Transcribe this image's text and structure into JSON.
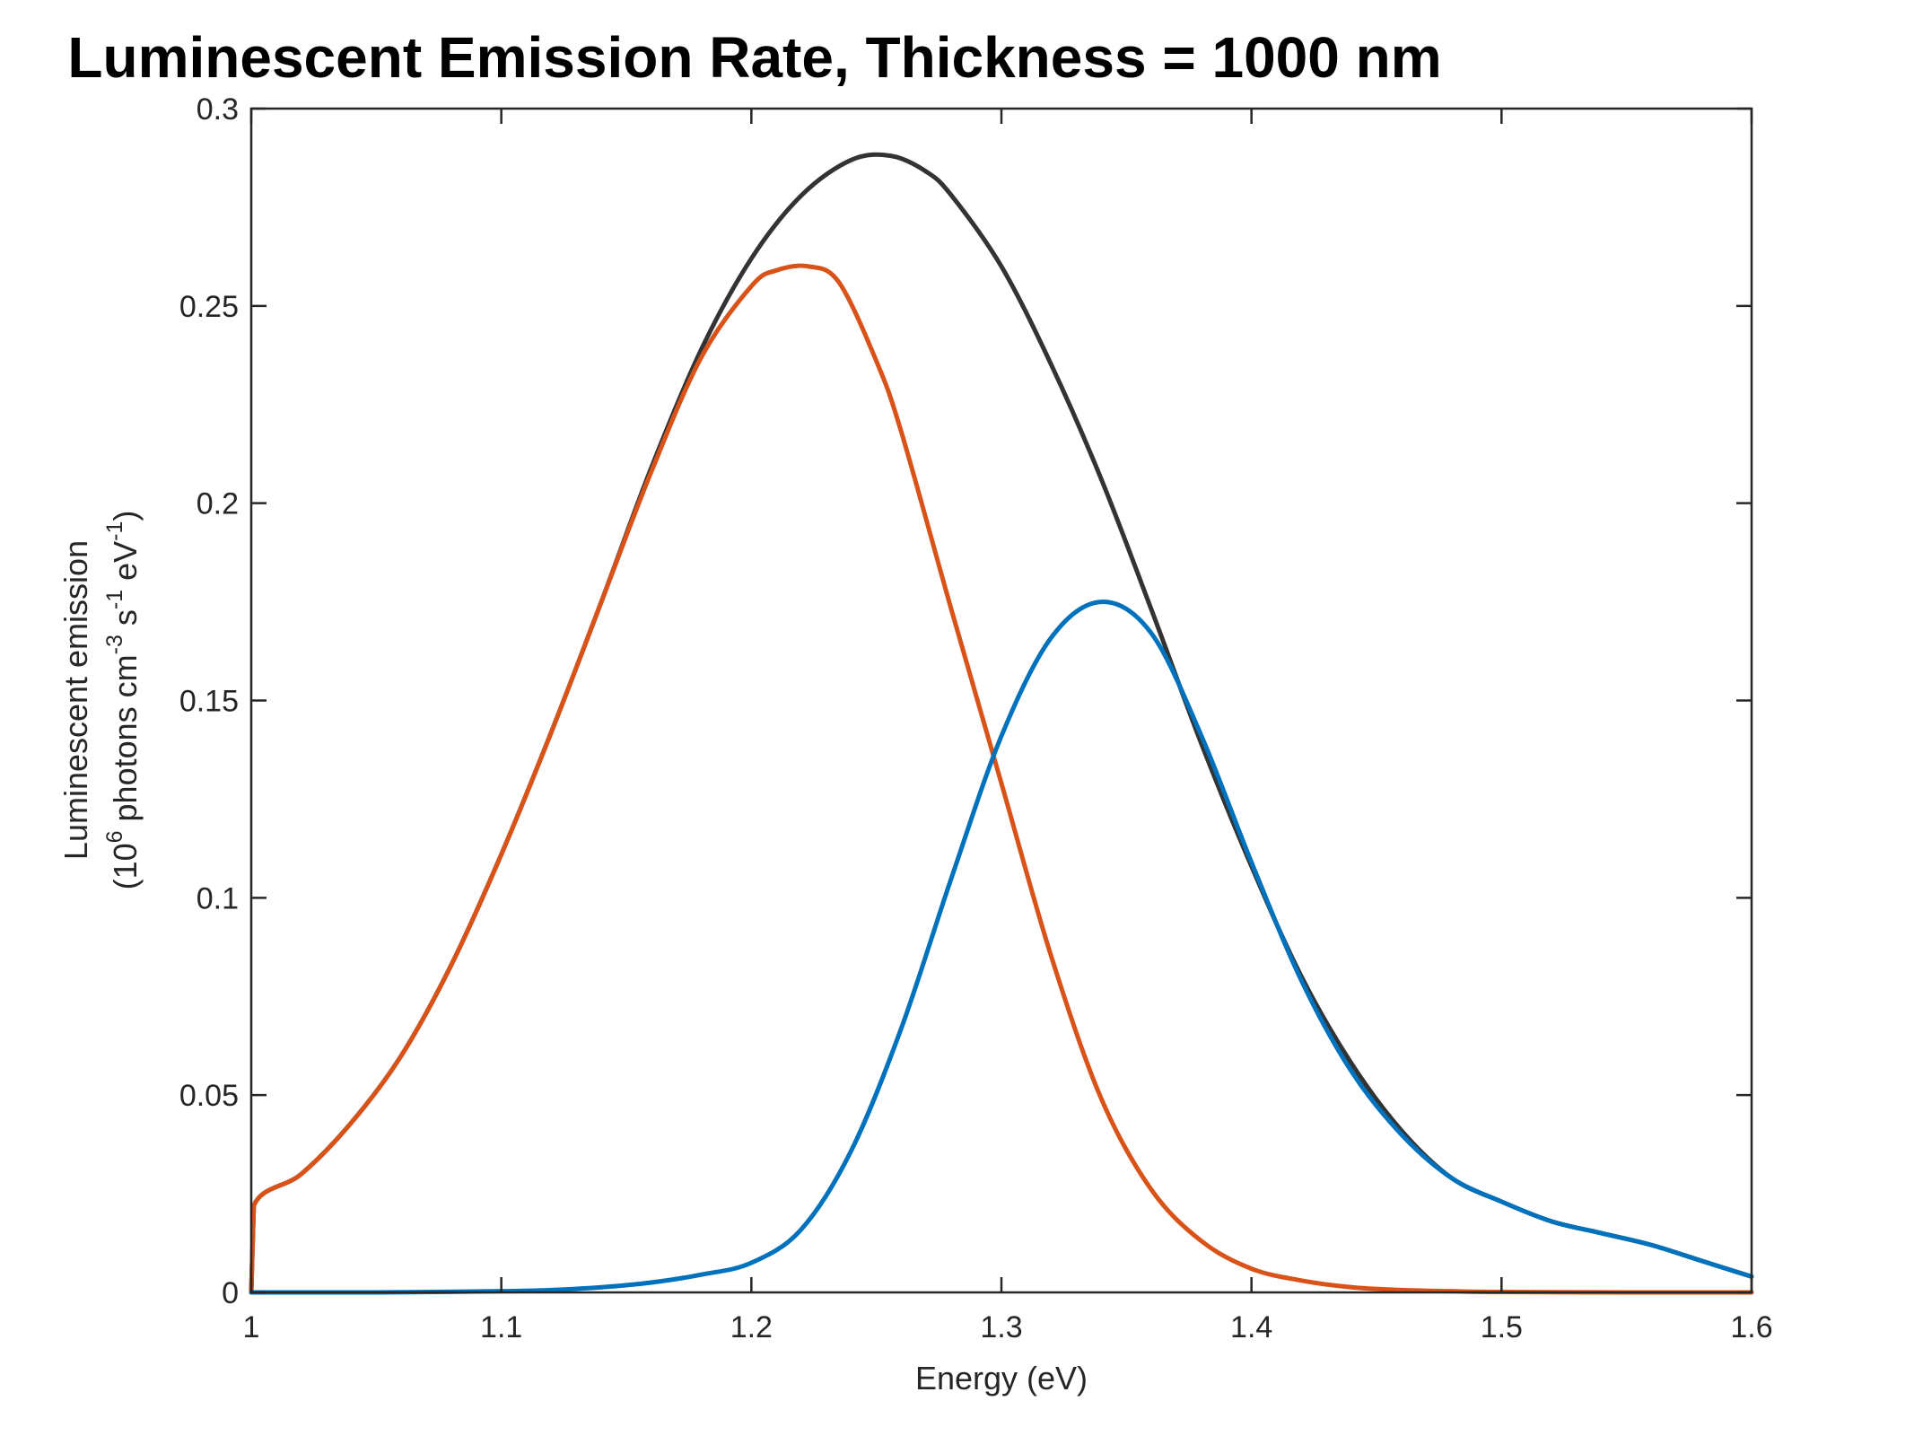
{
  "chart_data": {
    "type": "line",
    "title": "Luminescent Emission Rate, Thickness = 1000 nm",
    "xlabel": "Energy (eV)",
    "ylabel": {
      "line1": "Luminescent emission",
      "line2_parts": [
        "(10",
        "6",
        " photons cm",
        "-3",
        " s",
        "-1",
        " eV",
        "-1",
        ")"
      ]
    },
    "xlim": [
      1,
      1.6
    ],
    "ylim": [
      0,
      0.3
    ],
    "x_ticks": [
      1,
      1.1,
      1.2,
      1.3,
      1.4,
      1.5,
      1.6
    ],
    "x_tick_labels": [
      "1",
      "1.1",
      "1.2",
      "1.3",
      "1.4",
      "1.5",
      "1.6"
    ],
    "y_ticks": [
      0,
      0.05,
      0.1,
      0.15,
      0.2,
      0.25,
      0.3
    ],
    "y_tick_labels": [
      "0",
      "0.05",
      "0.1",
      "0.15",
      "0.2",
      "0.25",
      "0.3"
    ],
    "grid": false,
    "legend": "none",
    "series": [
      {
        "color": "#333333",
        "x": [
          1.0,
          1.001,
          1.02,
          1.04,
          1.06,
          1.08,
          1.1,
          1.12,
          1.14,
          1.16,
          1.18,
          1.2,
          1.22,
          1.24,
          1.256,
          1.27,
          1.28,
          1.3,
          1.32,
          1.34,
          1.36,
          1.38,
          1.4,
          1.42,
          1.44,
          1.46,
          1.48,
          1.5,
          1.52,
          1.54,
          1.56,
          1.58,
          1.6
        ],
        "y": [
          0.0,
          0.022,
          0.03,
          0.043,
          0.06,
          0.083,
          0.111,
          0.142,
          0.175,
          0.209,
          0.239,
          0.262,
          0.278,
          0.287,
          0.288,
          0.284,
          0.278,
          0.26,
          0.235,
          0.206,
          0.173,
          0.139,
          0.108,
          0.08,
          0.058,
          0.041,
          0.029,
          0.023,
          0.018,
          0.015,
          0.012,
          0.008,
          0.004
        ]
      },
      {
        "color": "#D95319",
        "x": [
          1.0,
          1.001,
          1.02,
          1.04,
          1.06,
          1.08,
          1.1,
          1.12,
          1.14,
          1.16,
          1.18,
          1.2,
          1.21,
          1.223,
          1.235,
          1.25,
          1.26,
          1.28,
          1.3,
          1.32,
          1.34,
          1.36,
          1.38,
          1.4,
          1.42,
          1.44,
          1.46,
          1.48,
          1.5,
          1.55,
          1.6
        ],
        "y": [
          0.0,
          0.022,
          0.03,
          0.043,
          0.06,
          0.083,
          0.111,
          0.142,
          0.175,
          0.208,
          0.237,
          0.255,
          0.259,
          0.26,
          0.256,
          0.236,
          0.218,
          0.173,
          0.129,
          0.085,
          0.049,
          0.026,
          0.013,
          0.006,
          0.003,
          0.0013,
          0.0006,
          0.0003,
          0.0001,
          0.0,
          0.0
        ]
      },
      {
        "color": "#0072BD",
        "x": [
          1.0,
          1.05,
          1.1,
          1.12,
          1.14,
          1.16,
          1.18,
          1.2,
          1.22,
          1.24,
          1.26,
          1.28,
          1.3,
          1.32,
          1.34,
          1.36,
          1.38,
          1.4,
          1.42,
          1.44,
          1.46,
          1.48,
          1.5,
          1.52,
          1.54,
          1.56,
          1.58,
          1.6
        ],
        "y": [
          0.0,
          0.0,
          0.0003,
          0.0006,
          0.0013,
          0.0025,
          0.0045,
          0.0075,
          0.016,
          0.036,
          0.067,
          0.105,
          0.141,
          0.166,
          0.175,
          0.167,
          0.141,
          0.109,
          0.079,
          0.056,
          0.04,
          0.029,
          0.023,
          0.018,
          0.015,
          0.012,
          0.008,
          0.004
        ]
      }
    ]
  }
}
